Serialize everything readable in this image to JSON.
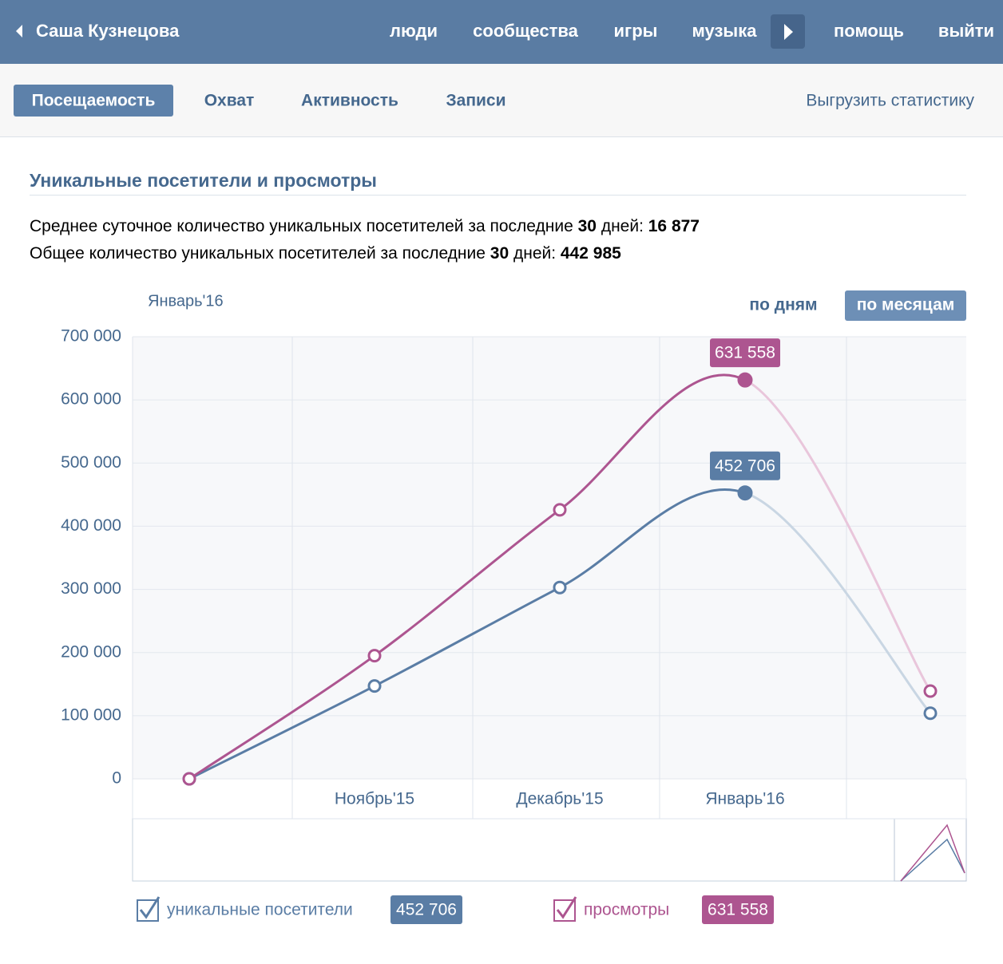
{
  "header": {
    "user": "Саша Кузнецова",
    "nav": [
      "люди",
      "сообщества",
      "игры",
      "музыка"
    ],
    "nav_right": [
      "помощь",
      "выйти"
    ]
  },
  "tabs": [
    "Посещаемость",
    "Охват",
    "Активность",
    "Записи"
  ],
  "export": "Выгрузить статистику",
  "section_title": "Уникальные посетители и просмотры",
  "summary": [
    [
      "Среднее суточное количество уникальных посетителей за последние ",
      "30",
      " дней: ",
      "16 877"
    ],
    [
      "Общее количество уникальных посетителей за последние ",
      "30",
      " дней: ",
      "442 985"
    ]
  ],
  "chart_controls": {
    "period": "Январь'16",
    "buttons": [
      "по дням",
      "по месяцам"
    ]
  },
  "chart_data": {
    "type": "line",
    "categories": [
      null,
      "Ноябрь'15",
      "Декабрь'15",
      "Январь'16",
      null
    ],
    "series": [
      {
        "name": "уникальные посетители",
        "color": "#5a7da5",
        "faded_color": "#c9d6e3",
        "values": [
          0,
          147000,
          303000,
          452706,
          104000
        ],
        "value_labels": [
          null,
          null,
          null,
          "452 706",
          null
        ]
      },
      {
        "name": "просмотры",
        "color": "#ad5590",
        "faded_color": "#e9c6db",
        "values": [
          0,
          195000,
          426000,
          631558,
          139000
        ],
        "value_labels": [
          null,
          null,
          null,
          "631 558",
          null
        ]
      }
    ],
    "ylim": [
      0,
      700000
    ],
    "yticks": [
      0,
      {
        "value": 100000,
        "label": "100 000"
      },
      {
        "value": 200000,
        "label": "200 000"
      },
      {
        "value": 300000,
        "label": "300 000"
      },
      {
        "value": 400000,
        "label": "400 000"
      },
      {
        "value": 500000,
        "label": "500 000"
      },
      {
        "value": 600000,
        "label": "600 000"
      },
      {
        "value": 700000,
        "label": "700 000"
      }
    ],
    "grid": true
  }
}
